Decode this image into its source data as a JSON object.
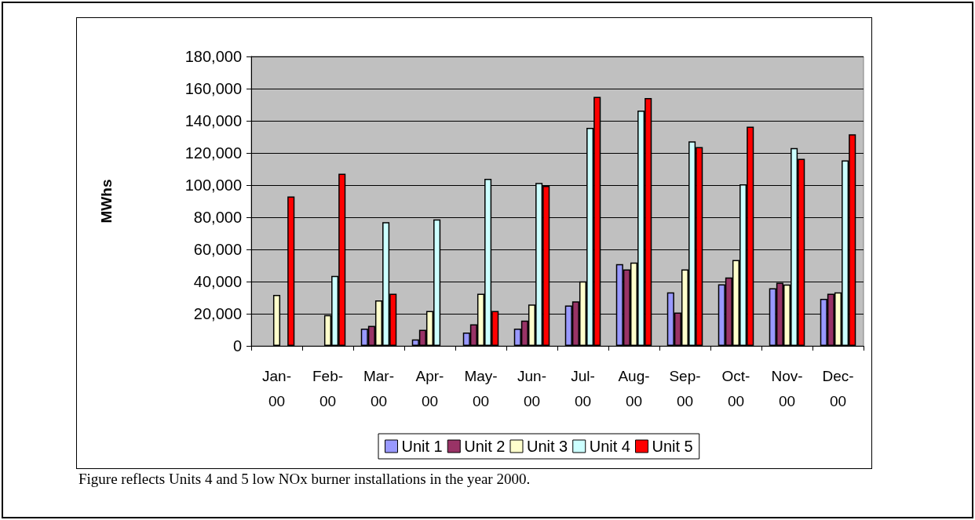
{
  "chart_data": {
    "type": "bar",
    "ylabel": "MWhs",
    "categories": [
      "Jan-00",
      "Feb-00",
      "Mar-00",
      "Apr-00",
      "May-00",
      "Jun-00",
      "Jul-00",
      "Aug-00",
      "Sep-00",
      "Oct-00",
      "Nov-00",
      "Dec-00"
    ],
    "series": [
      {
        "name": "Unit 1",
        "color": "#9999ff",
        "values": [
          null,
          null,
          10700,
          4000,
          8300,
          10700,
          25100,
          50800,
          33300,
          38300,
          35900,
          29300
        ]
      },
      {
        "name": "Unit 2",
        "color": "#993366",
        "values": [
          null,
          null,
          12500,
          10000,
          13400,
          15700,
          27700,
          47600,
          20700,
          42600,
          39300,
          32500
        ]
      },
      {
        "name": "Unit 3",
        "color": "#ffffcc",
        "values": [
          31700,
          19100,
          28300,
          21700,
          32500,
          25700,
          40100,
          51800,
          47600,
          53400,
          38200,
          33300
        ]
      },
      {
        "name": "Unit 4",
        "color": "#ccffff",
        "values": [
          null,
          43500,
          77000,
          78600,
          103900,
          101300,
          135600,
          146400,
          127200,
          100500,
          123000,
          115400
        ]
      },
      {
        "name": "Unit 5",
        "color": "#ff0000",
        "values": [
          92900,
          107100,
          32500,
          null,
          21700,
          99500,
          154900,
          154200,
          123600,
          136400,
          116300,
          131600
        ]
      }
    ],
    "ylim": [
      0,
      180000
    ],
    "yticks": [
      0,
      {
        "value": 20000,
        "label": "20,000"
      },
      {
        "value": 40000,
        "label": "40,000"
      },
      {
        "value": 60000,
        "label": "60,000"
      },
      {
        "value": 80000,
        "label": "80,000"
      },
      {
        "value": 100000,
        "label": "100,000"
      },
      {
        "value": 120000,
        "label": "120,000"
      },
      {
        "value": 140000,
        "label": "140,000"
      },
      {
        "value": 160000,
        "label": "160,000"
      },
      {
        "value": 180000,
        "label": "180,000"
      }
    ],
    "grid": "y",
    "legend": "bottom",
    "annotations": [
      "Figure reflects Units 4 and 5 low NOx burner installations in the year 2000."
    ]
  }
}
